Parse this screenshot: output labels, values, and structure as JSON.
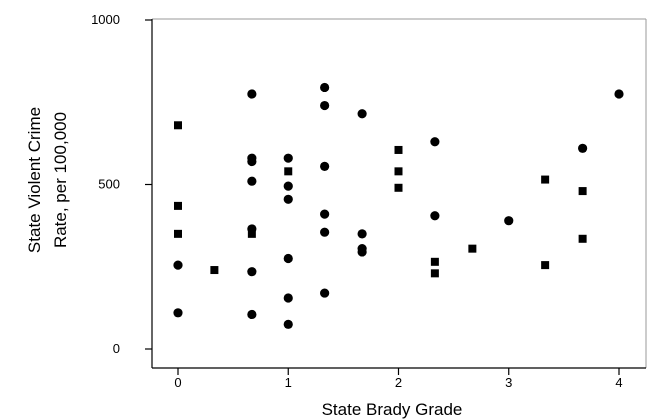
{
  "chart_data": {
    "type": "scatter",
    "xlabel": "State Brady Grade",
    "ylabel_lines": [
      "State Violent Crime",
      "Rate, per 100,000"
    ],
    "xlim": [
      -0.25,
      4.25
    ],
    "ylim": [
      0,
      1000
    ],
    "x_ticks": [
      0,
      1,
      2,
      3,
      4
    ],
    "x_tick_labels": [
      "0",
      "1",
      "2",
      "3",
      "4"
    ],
    "y_ticks": [
      0,
      500,
      1000
    ],
    "y_tick_labels": [
      "0",
      "500",
      "1000"
    ],
    "grid": false,
    "legend": "none",
    "colors": {
      "marker": "#000000",
      "axis": "#000000",
      "background": "#ffffff"
    },
    "points": [
      {
        "x": 0,
        "y": 680,
        "shape": "square"
      },
      {
        "x": 0,
        "y": 435,
        "shape": "square"
      },
      {
        "x": 0,
        "y": 350,
        "shape": "square"
      },
      {
        "x": 0,
        "y": 255,
        "shape": "circle"
      },
      {
        "x": 0,
        "y": 110,
        "shape": "circle"
      },
      {
        "x": 0.33,
        "y": 240,
        "shape": "square"
      },
      {
        "x": 0.67,
        "y": 775,
        "shape": "circle"
      },
      {
        "x": 0.67,
        "y": 580,
        "shape": "circle"
      },
      {
        "x": 0.67,
        "y": 570,
        "shape": "circle"
      },
      {
        "x": 0.67,
        "y": 510,
        "shape": "circle"
      },
      {
        "x": 0.67,
        "y": 365,
        "shape": "circle"
      },
      {
        "x": 0.67,
        "y": 350,
        "shape": "square"
      },
      {
        "x": 0.67,
        "y": 235,
        "shape": "circle"
      },
      {
        "x": 0.67,
        "y": 105,
        "shape": "circle"
      },
      {
        "x": 1,
        "y": 580,
        "shape": "circle"
      },
      {
        "x": 1,
        "y": 540,
        "shape": "square"
      },
      {
        "x": 1,
        "y": 495,
        "shape": "circle"
      },
      {
        "x": 1,
        "y": 455,
        "shape": "circle"
      },
      {
        "x": 1,
        "y": 275,
        "shape": "circle"
      },
      {
        "x": 1,
        "y": 155,
        "shape": "circle"
      },
      {
        "x": 1,
        "y": 75,
        "shape": "circle"
      },
      {
        "x": 1.33,
        "y": 795,
        "shape": "circle"
      },
      {
        "x": 1.33,
        "y": 740,
        "shape": "circle"
      },
      {
        "x": 1.33,
        "y": 555,
        "shape": "circle"
      },
      {
        "x": 1.33,
        "y": 410,
        "shape": "circle"
      },
      {
        "x": 1.33,
        "y": 355,
        "shape": "circle"
      },
      {
        "x": 1.33,
        "y": 170,
        "shape": "circle"
      },
      {
        "x": 1.67,
        "y": 715,
        "shape": "circle"
      },
      {
        "x": 1.67,
        "y": 350,
        "shape": "circle"
      },
      {
        "x": 1.67,
        "y": 305,
        "shape": "circle"
      },
      {
        "x": 1.67,
        "y": 295,
        "shape": "circle"
      },
      {
        "x": 2,
        "y": 605,
        "shape": "square"
      },
      {
        "x": 2,
        "y": 540,
        "shape": "square"
      },
      {
        "x": 2,
        "y": 490,
        "shape": "square"
      },
      {
        "x": 2.33,
        "y": 630,
        "shape": "circle"
      },
      {
        "x": 2.33,
        "y": 405,
        "shape": "circle"
      },
      {
        "x": 2.33,
        "y": 265,
        "shape": "square"
      },
      {
        "x": 2.33,
        "y": 230,
        "shape": "square"
      },
      {
        "x": 2.67,
        "y": 305,
        "shape": "square"
      },
      {
        "x": 3,
        "y": 390,
        "shape": "circle"
      },
      {
        "x": 3.33,
        "y": 515,
        "shape": "square"
      },
      {
        "x": 3.33,
        "y": 255,
        "shape": "square"
      },
      {
        "x": 3.67,
        "y": 610,
        "shape": "circle"
      },
      {
        "x": 3.67,
        "y": 480,
        "shape": "square"
      },
      {
        "x": 3.67,
        "y": 335,
        "shape": "square"
      },
      {
        "x": 4,
        "y": 775,
        "shape": "circle"
      }
    ]
  }
}
